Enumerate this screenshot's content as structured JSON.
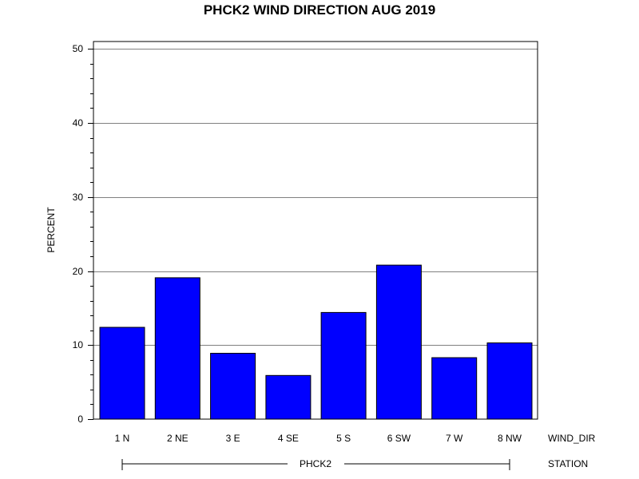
{
  "chart_data": {
    "type": "bar",
    "title": "PHCK2 WIND DIRECTION AUG 2019",
    "ylabel": "PERCENT",
    "categories": [
      "1 N",
      "2 NE",
      "3 E",
      "4 SE",
      "5 S",
      "6 SW",
      "7 W",
      "8 NW"
    ],
    "values": [
      12.4,
      19.1,
      8.9,
      5.9,
      14.4,
      20.8,
      8.3,
      10.3
    ],
    "ylim": [
      0,
      51
    ],
    "yticks": [
      0,
      10,
      20,
      30,
      40,
      50
    ],
    "grid": true,
    "bar_color": "#0000FF",
    "category_axis_label": "WIND_DIR",
    "group_label": "PHCK2",
    "group_axis_label": "STATION"
  }
}
